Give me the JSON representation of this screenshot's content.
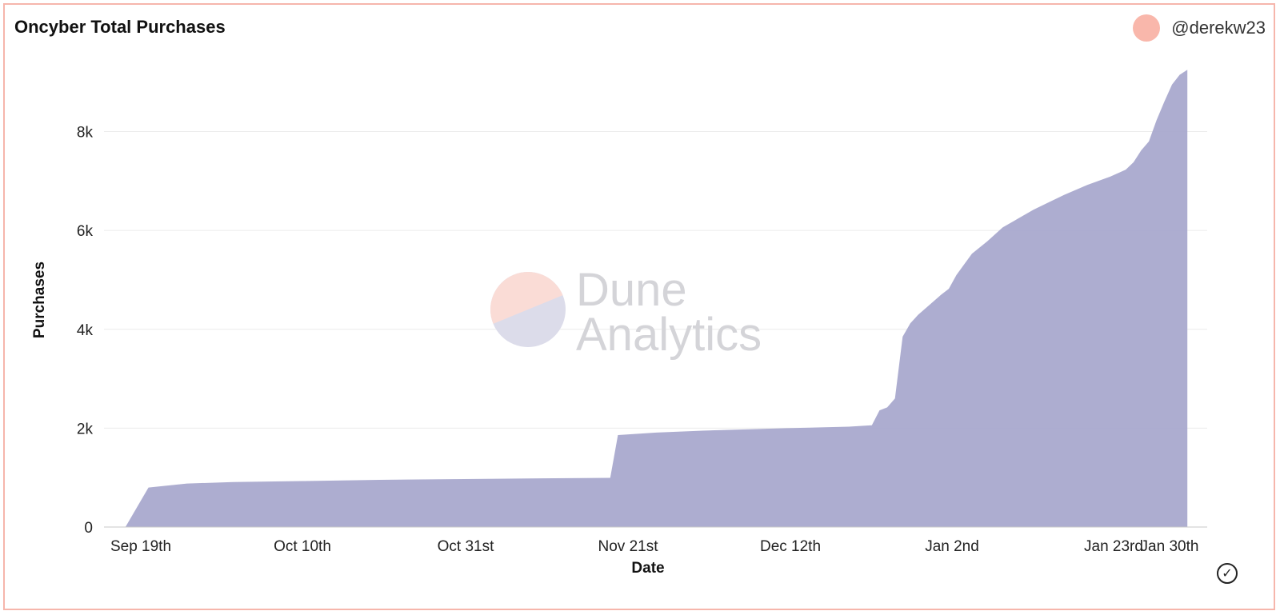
{
  "header": {
    "title": "Oncyber Total Purchases",
    "author": "@derekw23"
  },
  "watermark": {
    "line1": "Dune",
    "line2": "Analytics"
  },
  "colors": {
    "area": "#a9a9cd",
    "border": "#f6b6ac",
    "avatar": "#f9b7ab",
    "grid": "#ececec",
    "logo_top": "#fadcd6",
    "logo_bottom": "#dcdcea",
    "watermark_text": "#d4d4d8"
  },
  "icons": {
    "status": "check-circle-icon"
  },
  "chart_data": {
    "type": "area",
    "title": "Oncyber Total Purchases",
    "xlabel": "Date",
    "ylabel": "Purchases",
    "ylim": [
      0,
      9400
    ],
    "grid": true,
    "x_tick_labels": [
      "Sep 19th",
      "Oct 10th",
      "Oct 31st",
      "Nov 21st",
      "Dec 12th",
      "Jan 2nd",
      "Jan 23rd",
      "Jan 30th"
    ],
    "y_tick_labels": [
      "0",
      "2k",
      "4k",
      "6k",
      "8k"
    ],
    "y_tick_values": [
      0,
      2000,
      4000,
      6000,
      8000
    ],
    "series": [
      {
        "x": [
          "Sep 17",
          "Sep 20",
          "Sep 25",
          "Oct 1",
          "Oct 10",
          "Oct 20",
          "Oct 31",
          "Nov 10",
          "Nov 19",
          "Nov 20",
          "Nov 25",
          "Dec 1",
          "Dec 12",
          "Dec 20",
          "Dec 23",
          "Dec 24",
          "Dec 25",
          "Dec 26",
          "Dec 27",
          "Dec 28",
          "Dec 29",
          "Jan 1",
          "Jan 2",
          "Jan 3",
          "Jan 5",
          "Jan 7",
          "Jan 9",
          "Jan 13",
          "Jan 17",
          "Jan 20",
          "Jan 23",
          "Jan 25",
          "Jan 26",
          "Jan 27",
          "Jan 28",
          "Jan 29",
          "Jan 30",
          "Jan 31",
          "Feb 1",
          "Feb 2"
        ],
        "values": [
          0,
          800,
          880,
          910,
          930,
          955,
          970,
          985,
          995,
          1860,
          1910,
          1950,
          2000,
          2030,
          2060,
          2360,
          2420,
          2600,
          3850,
          4120,
          4290,
          4700,
          4820,
          5100,
          5530,
          5780,
          6060,
          6420,
          6720,
          6920,
          7090,
          7230,
          7380,
          7620,
          7800,
          8230,
          8600,
          8950,
          9150,
          9250
        ]
      }
    ]
  }
}
